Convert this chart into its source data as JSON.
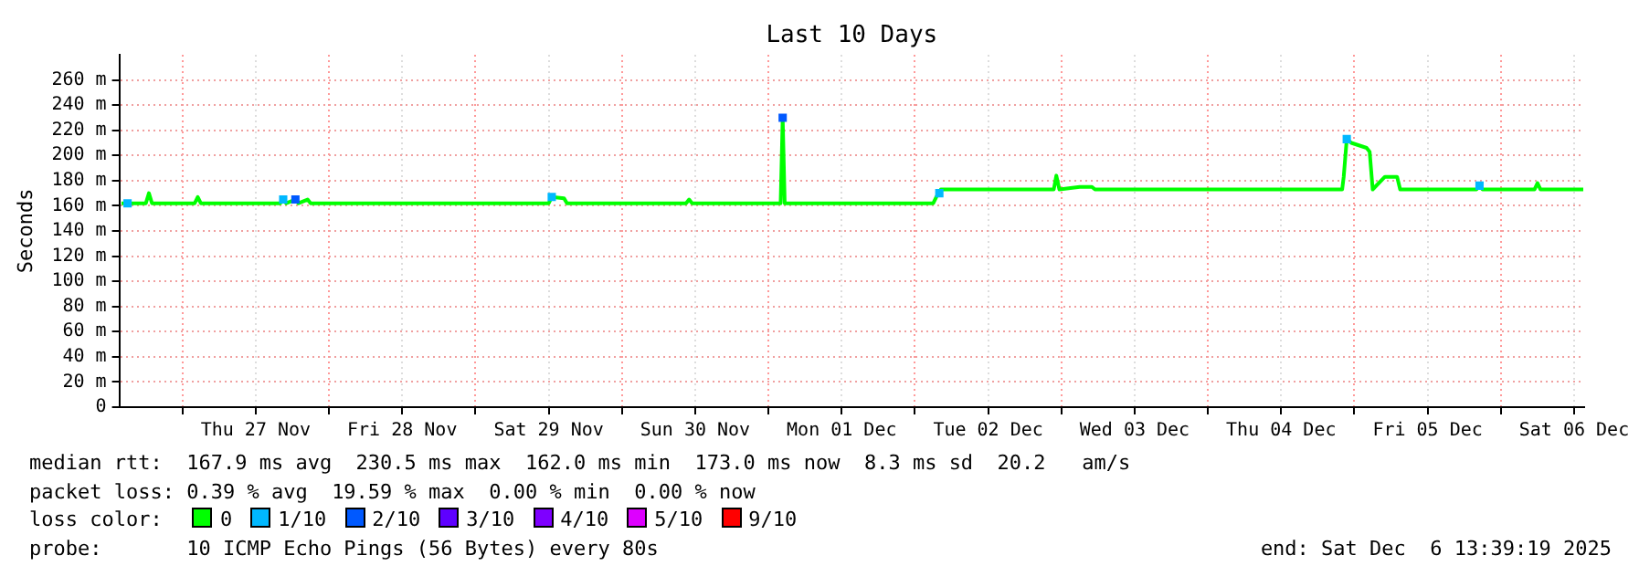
{
  "chart_data": {
    "type": "line",
    "title": "Last 10 Days",
    "ylabel": "Seconds",
    "legend_title": "loss color:",
    "xlim": [
      "2025-11-26T13:39",
      "2025-12-06T13:39"
    ],
    "xticks": [
      {
        "value": "2025-11-27T00:00",
        "label": null
      },
      {
        "value": "2025-11-27T12:00",
        "label": "Thu 27 Nov"
      },
      {
        "value": "2025-11-28T00:00",
        "label": null
      },
      {
        "value": "2025-11-28T12:00",
        "label": "Fri 28 Nov"
      },
      {
        "value": "2025-11-29T00:00",
        "label": null
      },
      {
        "value": "2025-11-29T12:00",
        "label": "Sat 29 Nov"
      },
      {
        "value": "2025-11-30T00:00",
        "label": null
      },
      {
        "value": "2025-11-30T12:00",
        "label": "Sun 30 Nov"
      },
      {
        "value": "2025-12-01T00:00",
        "label": null
      },
      {
        "value": "2025-12-01T12:00",
        "label": "Mon 01 Dec"
      },
      {
        "value": "2025-12-02T00:00",
        "label": null
      },
      {
        "value": "2025-12-02T12:00",
        "label": "Tue 02 Dec"
      },
      {
        "value": "2025-12-03T00:00",
        "label": null
      },
      {
        "value": "2025-12-03T12:00",
        "label": "Wed 03 Dec"
      },
      {
        "value": "2025-12-04T00:00",
        "label": null
      },
      {
        "value": "2025-12-04T12:00",
        "label": "Thu 04 Dec"
      },
      {
        "value": "2025-12-05T00:00",
        "label": null
      },
      {
        "value": "2025-12-05T12:00",
        "label": "Fri 05 Dec"
      },
      {
        "value": "2025-12-06T00:00",
        "label": null
      },
      {
        "value": "2025-12-06T12:00",
        "label": "Sat 06 Dec"
      }
    ],
    "ylim": [
      0,
      280
    ],
    "yticks": [
      0,
      {
        "value": 20,
        "label": "20 m"
      },
      {
        "value": 40,
        "label": "40 m"
      },
      {
        "value": 60,
        "label": "60 m"
      },
      {
        "value": 80,
        "label": "80 m"
      },
      {
        "value": 100,
        "label": "100 m"
      },
      {
        "value": 120,
        "label": "120 m"
      },
      {
        "value": 140,
        "label": "140 m"
      },
      {
        "value": 160,
        "label": "160 m"
      },
      {
        "value": 180,
        "label": "180 m"
      },
      {
        "value": 200,
        "label": "200 m"
      },
      {
        "value": 220,
        "label": "220 m"
      },
      {
        "value": 240,
        "label": "240 m"
      },
      {
        "value": 260,
        "label": "260 m"
      }
    ],
    "grid": true,
    "legend": "bottom",
    "line_style": "solid",
    "series": [
      {
        "name": "0",
        "color": "#00ff00",
        "x": [
          "2025-11-26T14:00",
          "2025-11-26T18:00",
          "2025-11-26T18:30",
          "2025-11-26T19:00",
          "2025-11-27T02:00",
          "2025-11-27T02:30",
          "2025-11-27T03:00",
          "2025-11-27T16:00",
          "2025-11-27T16:30",
          "2025-11-27T17:00",
          "2025-11-27T18:30",
          "2025-11-27T19:00",
          "2025-11-27T20:30",
          "2025-11-27T21:00",
          "2025-11-29T12:00",
          "2025-11-29T12:30",
          "2025-11-29T14:30",
          "2025-11-29T15:00",
          "2025-11-30T10:30",
          "2025-11-30T11:00",
          "2025-11-30T11:30",
          "2025-12-01T02:00",
          "2025-12-01T02:20",
          "2025-12-01T02:40",
          "2025-12-02T03:00",
          "2025-12-02T03:30",
          "2025-12-02T04:15",
          "2025-12-02T22:45",
          "2025-12-02T23:10",
          "2025-12-02T23:40",
          "2025-12-03T03:00",
          "2025-12-03T05:00",
          "2025-12-03T05:30",
          "2025-12-04T22:00",
          "2025-12-04T22:15",
          "2025-12-04T22:45",
          "2025-12-04T23:30",
          "2025-12-05T02:00",
          "2025-12-05T02:30",
          "2025-12-05T03:00",
          "2025-12-05T05:00",
          "2025-12-05T07:00",
          "2025-12-05T07:30",
          "2025-12-05T20:00",
          "2025-12-05T20:30",
          "2025-12-05T21:00",
          "2025-12-06T05:30",
          "2025-12-06T06:00",
          "2025-12-06T06:30",
          "2025-12-06T13:30"
        ],
        "values": [
          162,
          162,
          170,
          162,
          162,
          167,
          162,
          162,
          165,
          162,
          165,
          162,
          165,
          162,
          162,
          167,
          166,
          162,
          162,
          165,
          162,
          162,
          230,
          162,
          162,
          167,
          173,
          173,
          184,
          173,
          175,
          175,
          173,
          173,
          183,
          213,
          210,
          206,
          203,
          173,
          183,
          183,
          173,
          173,
          176,
          173,
          173,
          178,
          173,
          173
        ]
      },
      {
        "name": "1/10",
        "color": "#00b8ff",
        "type": "scatter",
        "marker": "square",
        "x": [
          "2025-11-26T15:00",
          "2025-11-27T16:30",
          "2025-11-29T12:30",
          "2025-12-02T04:00",
          "2025-12-04T22:45",
          "2025-12-05T20:30"
        ],
        "values": [
          162,
          165,
          167,
          170,
          213,
          176
        ]
      },
      {
        "name": "2/10",
        "color": "#0059ff",
        "type": "scatter",
        "marker": "square",
        "x": [
          "2025-12-01T02:20",
          "2025-11-27T18:30"
        ],
        "values": [
          230,
          165
        ]
      },
      {
        "name": "3/10",
        "color": "#5e00ff",
        "type": "scatter"
      },
      {
        "name": "4/10",
        "color": "#7e00ff",
        "type": "scatter"
      },
      {
        "name": "5/10",
        "color": "#dd00ff",
        "type": "scatter"
      },
      {
        "name": "9/10",
        "color": "#ff0000",
        "type": "scatter"
      }
    ],
    "annotations": [
      "median rtt:  167.9 ms avg  230.5 ms max  162.0 ms min  173.0 ms now  8.3 ms sd  20.2   am/s",
      "packet loss: 0.39 % avg  19.59 % max  0.00 % min  0.00 % now",
      "probe:       10 ICMP Echo Pings (56 Bytes) every 80s",
      "end: Sat Dec  6 13:39:19 2025"
    ]
  }
}
